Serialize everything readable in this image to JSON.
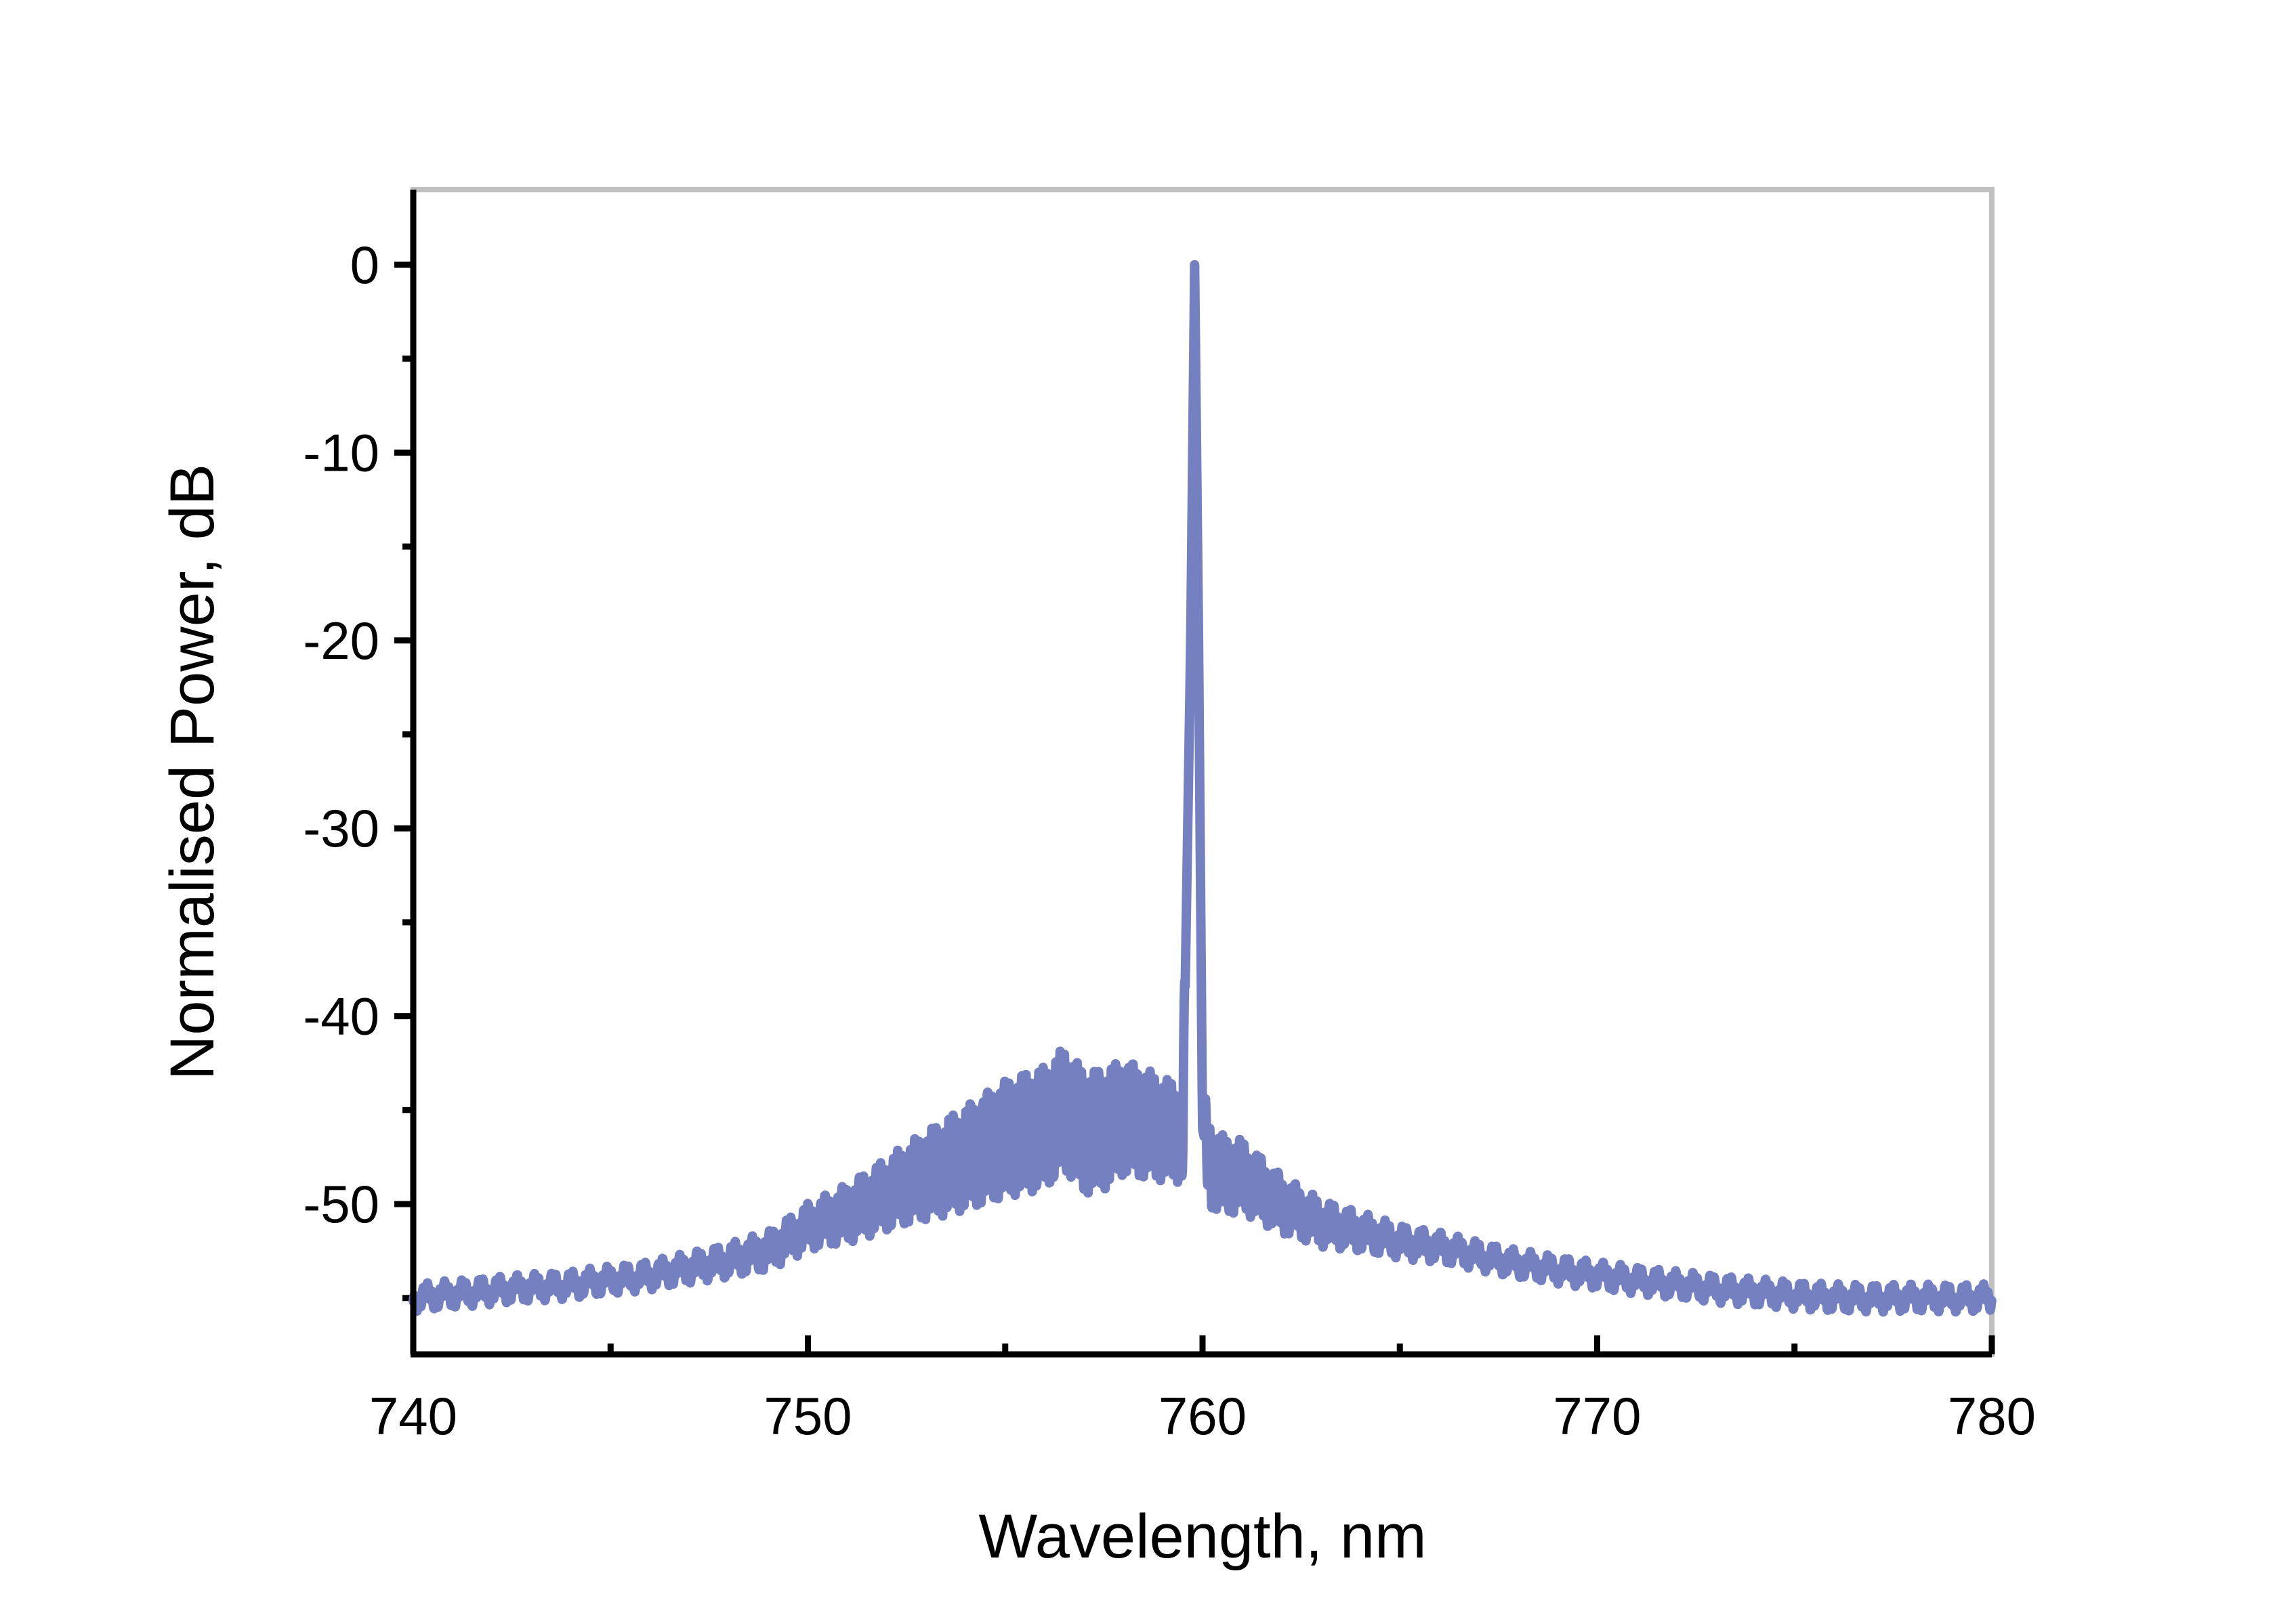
{
  "chart_data": {
    "type": "line",
    "title": "",
    "xlabel": "Wavelength, nm",
    "ylabel": "Normalised Power, dB",
    "xlim": [
      740,
      780
    ],
    "ylim": [
      -58,
      4
    ],
    "x_ticks": [
      740,
      750,
      760,
      770,
      780
    ],
    "x_tick_labels": [
      "740",
      "750",
      "760",
      "770",
      "780"
    ],
    "y_ticks": [
      0,
      -10,
      -20,
      -30,
      -40,
      -50
    ],
    "y_tick_labels": [
      "0",
      "-10",
      "-20",
      "-30",
      "-40",
      "-50"
    ],
    "grid": false,
    "legend": "none",
    "colors": {
      "series": "#7480c0",
      "axis": "#000000",
      "frame": "#c0c0c0"
    },
    "series": [
      {
        "x": [
          740,
          742,
          744,
          746,
          748,
          749,
          750,
          751,
          752,
          753,
          754,
          755,
          756,
          756.5,
          757,
          757.5,
          758,
          759,
          759.5,
          759.7,
          759.8,
          759.9,
          760,
          760.2,
          760.5,
          761,
          762,
          763,
          764,
          765,
          766,
          768,
          770,
          772,
          774,
          776,
          778,
          780
        ],
        "y": [
          -55,
          -54.6,
          -54.3,
          -53.8,
          -53,
          -52.5,
          -51.2,
          -50.5,
          -49.5,
          -48.5,
          -47.5,
          -46.5,
          -46,
          -45,
          -46.2,
          -46,
          -45.3,
          -46,
          -46.3,
          -20,
          0,
          -20,
          -46,
          -48,
          -48.5,
          -48.5,
          -50,
          -51,
          -51.5,
          -52,
          -52.3,
          -53.2,
          -53.8,
          -54.3,
          -54.7,
          -55,
          -55,
          -55
        ]
      }
    ]
  }
}
